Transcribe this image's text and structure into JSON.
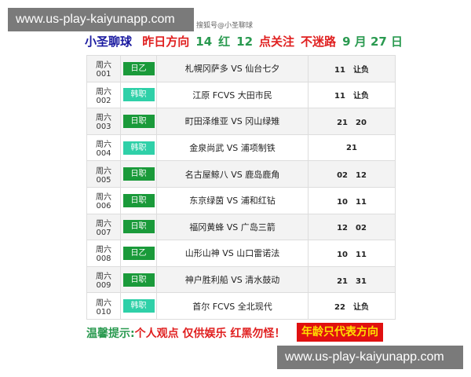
{
  "watermark": "www.us-play-kaiyunapp.com",
  "source_tag": "搜狐号@小圣聊球",
  "header": {
    "brand": "小圣聊球",
    "part1": "昨日方向",
    "n1": "14",
    "part2": "红",
    "n2": "12",
    "part3": "点关注",
    "part4": "不迷路",
    "date": "9 月 27 日"
  },
  "colors": {
    "badge_dark": "#1a9a3a",
    "badge_light": "#2fd0a8",
    "red": "#e02020",
    "green": "#2a9a50"
  },
  "rows": [
    {
      "day": "周六 001",
      "league": "日乙",
      "match": "札幌冈萨多 VS 仙台七夕",
      "result": "11　让负",
      "light": false
    },
    {
      "day": "周六 002",
      "league": "韩职",
      "match": "江原 FCVS 大田市民",
      "result": "11　让负",
      "light": true
    },
    {
      "day": "周六 003",
      "league": "日职",
      "match": "町田泽维亚 VS 冈山绿雉",
      "result": "21　20",
      "light": false
    },
    {
      "day": "周六 004",
      "league": "韩职",
      "match": "金泉尚武 VS 浦项制铁",
      "result": "21",
      "light": true
    },
    {
      "day": "周六 005",
      "league": "日职",
      "match": "名古屋鲸八 VS 鹿岛鹿角",
      "result": "02　12",
      "light": false
    },
    {
      "day": "周六 006",
      "league": "日职",
      "match": "东京绿茵 VS 浦和红钻",
      "result": "10　11",
      "light": false
    },
    {
      "day": "周六 007",
      "league": "日职",
      "match": "福冈黄蜂 VS 广岛三箭",
      "result": "12　02",
      "light": false
    },
    {
      "day": "周六 008",
      "league": "日乙",
      "match": "山形山神 VS 山口雷诺法",
      "result": "10　11",
      "light": false
    },
    {
      "day": "周六 009",
      "league": "日职",
      "match": "神户胜利船 VS 清水鼓动",
      "result": "21　31",
      "light": false
    },
    {
      "day": "周六 010",
      "league": "韩职",
      "match": "首尔 FCVS 全北现代",
      "result": "22　让负",
      "light": true
    }
  ],
  "footer": {
    "tip_label": "温馨提示:",
    "tip_text": "个人观点  仅供娱乐  红黑勿怪！",
    "badge": "年龄只代表方向"
  }
}
